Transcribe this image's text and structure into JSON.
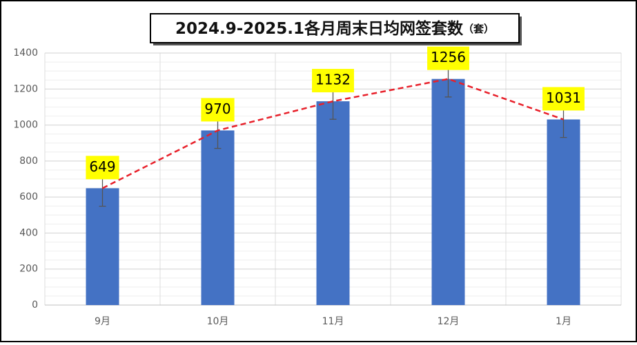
{
  "chart_data": {
    "type": "bar",
    "title": "2024.9-2025.1各月周末日均网签套数",
    "title_unit": "（套）",
    "categories": [
      "9月",
      "10月",
      "11月",
      "12月",
      "1月"
    ],
    "values": [
      649,
      970,
      1132,
      1256,
      1031
    ],
    "errors": [
      100,
      100,
      100,
      100,
      100
    ],
    "color": "#4472c4",
    "trend_color": "#e8202a",
    "label_color": "#ffff00",
    "ylim": [
      0,
      1400
    ],
    "yticks": [
      0,
      200,
      400,
      600,
      800,
      1000,
      1200,
      1400
    ],
    "minor_yticks": [
      50,
      100,
      150,
      250,
      300,
      350,
      450,
      500,
      550,
      650,
      700,
      750,
      850,
      900,
      950,
      1050,
      1100,
      1150,
      1250,
      1300,
      1350
    ],
    "grid": true
  }
}
